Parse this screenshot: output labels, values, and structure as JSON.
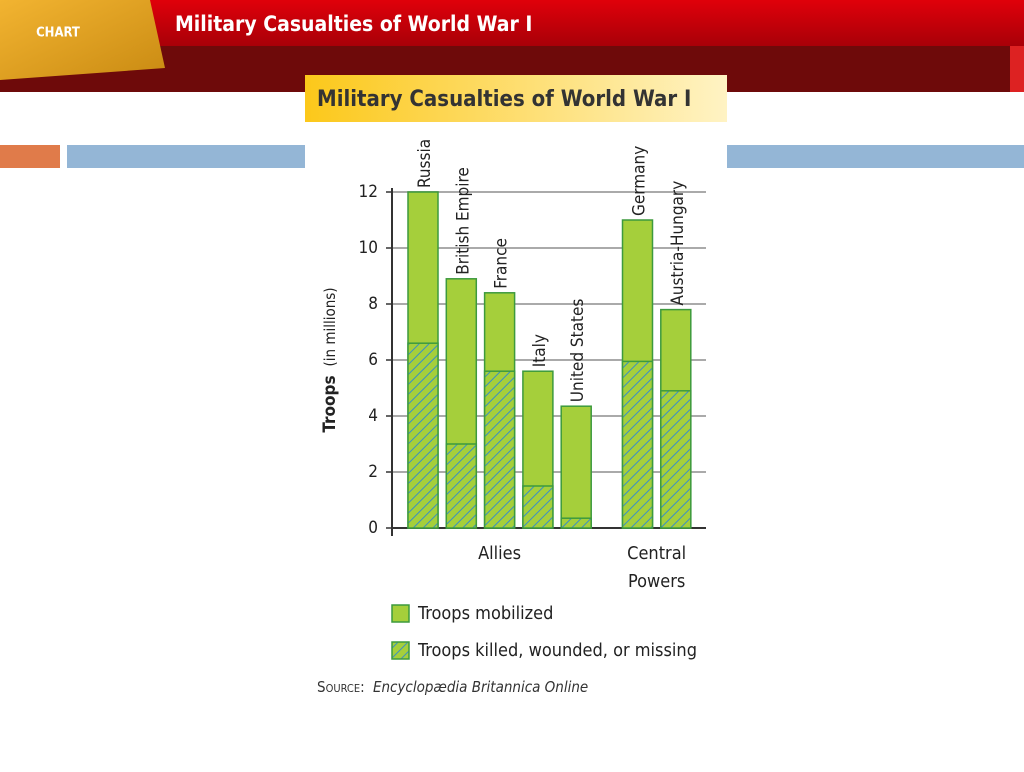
{
  "slide": {
    "badge": "CHART",
    "heading": "Military Casualties of World War I"
  },
  "chart_data": {
    "type": "bar",
    "title": "Military Casualties of World War I",
    "y_label_main": "Troops",
    "y_label_note": "(in millions)",
    "categories": [
      "Russia",
      "British Empire",
      "France",
      "Italy",
      "United States",
      "Germany",
      "Austria-Hungary"
    ],
    "groups": [
      {
        "label": "Allies",
        "members": [
          "Russia",
          "British Empire",
          "France",
          "Italy",
          "United States"
        ]
      },
      {
        "label": "Central Powers",
        "members": [
          "Germany",
          "Austria-Hungary"
        ]
      }
    ],
    "series": [
      {
        "name": "Troops mobilized",
        "color": "#a5cf3b",
        "values": [
          12,
          8.9,
          8.4,
          5.6,
          4.35,
          11,
          7.8
        ]
      },
      {
        "name": "Troops killed, wounded, or missing",
        "color": "#3a8fc4",
        "hatched": true,
        "values": [
          6.6,
          3.0,
          5.6,
          1.5,
          0.35,
          5.95,
          4.9
        ]
      }
    ],
    "ylim": [
      0,
      12
    ],
    "yticks": [
      0,
      2,
      4,
      6,
      8,
      10,
      12
    ],
    "grid": true,
    "source_label": "Source:",
    "source": "Encyclopædia Britannica Online"
  }
}
